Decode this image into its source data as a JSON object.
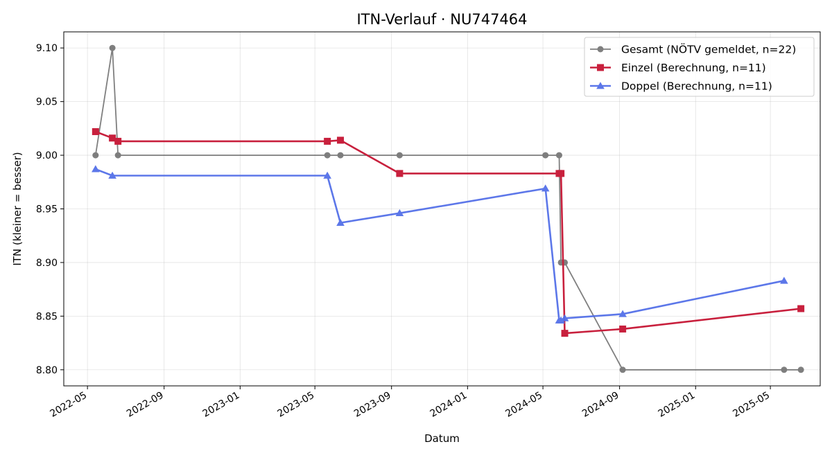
{
  "chart_data": {
    "type": "line",
    "title": "ITN-Verlauf · NU747464",
    "xlabel": "Datum",
    "ylabel": "ITN  (kleiner = besser)",
    "x_ticks": [
      "2022-05",
      "2022-09",
      "2023-01",
      "2023-05",
      "2023-09",
      "2024-01",
      "2024-05",
      "2024-09",
      "2025-01",
      "2025-05"
    ],
    "y_ticks": [
      "8.80",
      "8.85",
      "8.90",
      "8.95",
      "9.00",
      "9.05",
      "9.10"
    ],
    "xlim": [
      "2022-03-24",
      "2025-07-20"
    ],
    "ylim": [
      8.785,
      9.115
    ],
    "grid": true,
    "legend_position": "top-right",
    "series": [
      {
        "name": "Gesamt (NÖTV gemeldet, n=22)",
        "color": "#555555",
        "marker": "circle",
        "points": [
          [
            "2022-05-14",
            9.0
          ],
          [
            "2022-06-10",
            9.1
          ],
          [
            "2022-06-19",
            9.0
          ],
          [
            "2023-05-21",
            9.0
          ],
          [
            "2023-06-11",
            9.0
          ],
          [
            "2023-09-14",
            9.0
          ],
          [
            "2024-05-05",
            9.0
          ],
          [
            "2024-05-27",
            9.0
          ],
          [
            "2024-05-30",
            8.9
          ],
          [
            "2024-06-05",
            8.9
          ],
          [
            "2024-09-06",
            8.8
          ],
          [
            "2025-05-23",
            8.8
          ],
          [
            "2025-06-19",
            8.8
          ]
        ]
      },
      {
        "name": "Einzel (Berechnung, n=11)",
        "color": "#c8203d",
        "marker": "square",
        "points": [
          [
            "2022-05-14",
            9.022
          ],
          [
            "2022-06-10",
            9.016
          ],
          [
            "2022-06-19",
            9.013
          ],
          [
            "2023-05-21",
            9.013
          ],
          [
            "2023-06-11",
            9.014
          ],
          [
            "2023-09-14",
            8.983
          ],
          [
            "2024-05-27",
            8.983
          ],
          [
            "2024-05-30",
            8.983
          ],
          [
            "2024-06-05",
            8.834
          ],
          [
            "2024-09-06",
            8.838
          ],
          [
            "2025-06-19",
            8.857
          ]
        ]
      },
      {
        "name": "Doppel (Berechnung, n=11)",
        "color": "#5470e8",
        "marker": "triangle",
        "points": [
          [
            "2022-05-14",
            8.987
          ],
          [
            "2022-06-10",
            8.981
          ],
          [
            "2023-05-21",
            8.981
          ],
          [
            "2023-06-11",
            8.937
          ],
          [
            "2023-09-14",
            8.946
          ],
          [
            "2024-05-05",
            8.969
          ],
          [
            "2024-05-27",
            8.846
          ],
          [
            "2024-05-30",
            8.846
          ],
          [
            "2024-06-05",
            8.848
          ],
          [
            "2024-09-06",
            8.852
          ],
          [
            "2025-05-23",
            8.883
          ]
        ]
      }
    ]
  }
}
